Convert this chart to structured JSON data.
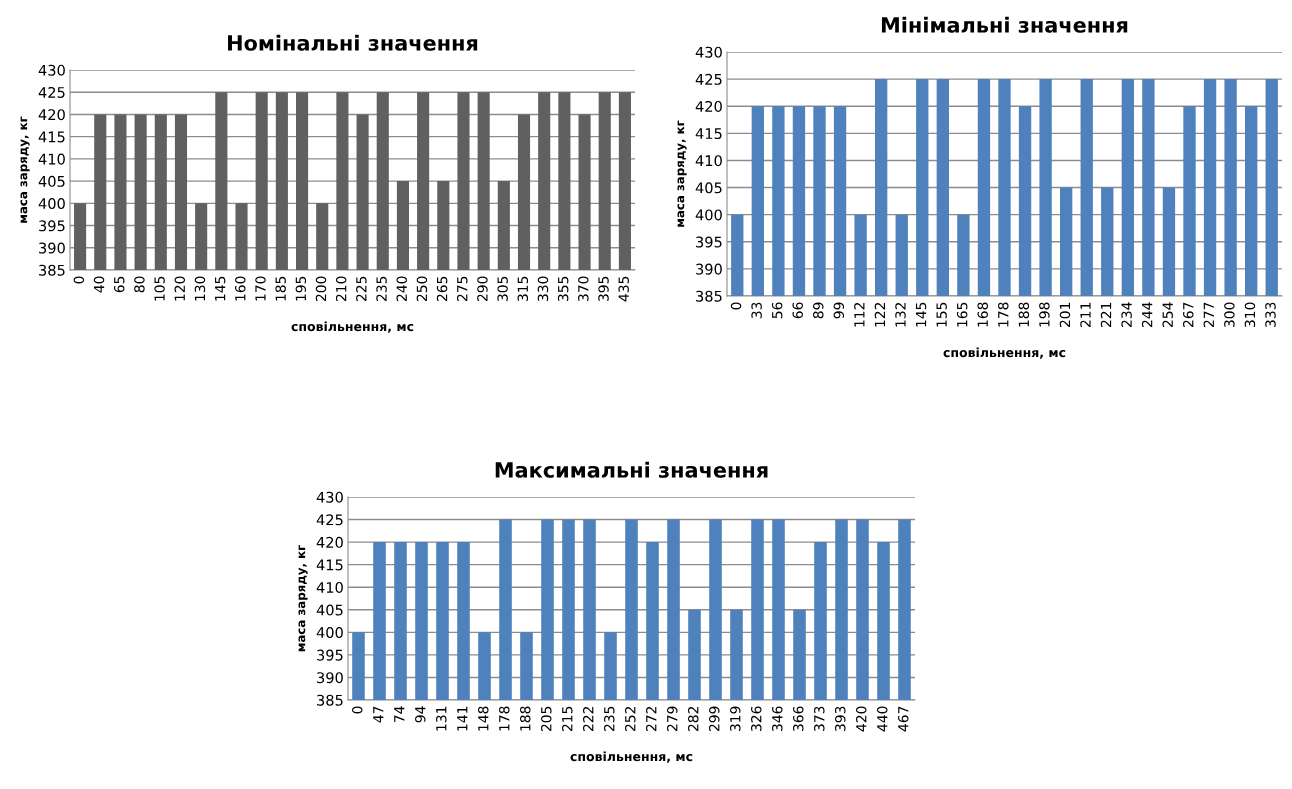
{
  "chart_data": [
    {
      "type": "bar",
      "title": "Номінальні значення",
      "xlabel": "сповільнення, мс",
      "ylabel": "маса заряду, кг",
      "color": "#606060",
      "grid": "y",
      "ylim": [
        385,
        430
      ],
      "yticks": [
        385,
        390,
        395,
        400,
        405,
        410,
        415,
        420,
        425,
        430
      ],
      "categories": [
        "0",
        "40",
        "65",
        "80",
        "105",
        "120",
        "130",
        "145",
        "160",
        "170",
        "185",
        "195",
        "200",
        "210",
        "225",
        "235",
        "240",
        "250",
        "265",
        "275",
        "290",
        "305",
        "315",
        "330",
        "355",
        "370",
        "395",
        "435"
      ],
      "values": [
        400,
        420,
        420,
        420,
        420,
        420,
        400,
        425,
        400,
        425,
        425,
        425,
        400,
        425,
        420,
        425,
        405,
        425,
        405,
        425,
        425,
        405,
        420,
        425,
        425,
        420,
        425,
        425
      ]
    },
    {
      "type": "bar",
      "title": "Мінімальні значення",
      "xlabel": "сповільнення, мс",
      "ylabel": "маса заряду, кг",
      "color": "#4f81bd",
      "grid": "y",
      "ylim": [
        385,
        430
      ],
      "yticks": [
        385,
        390,
        395,
        400,
        405,
        410,
        415,
        420,
        425,
        430
      ],
      "categories": [
        "0",
        "33",
        "56",
        "66",
        "89",
        "99",
        "112",
        "122",
        "132",
        "145",
        "155",
        "165",
        "168",
        "178",
        "188",
        "198",
        "201",
        "211",
        "221",
        "234",
        "244",
        "254",
        "267",
        "277",
        "300",
        "310",
        "333"
      ],
      "values": [
        400,
        420,
        420,
        420,
        420,
        420,
        400,
        425,
        400,
        425,
        425,
        400,
        425,
        425,
        420,
        425,
        405,
        425,
        405,
        425,
        425,
        405,
        420,
        425,
        425,
        420,
        425
      ]
    },
    {
      "type": "bar",
      "title": "Максимальні значення",
      "xlabel": "сповільнення, мс",
      "ylabel": "маса заряду, кг",
      "color": "#4f81bd",
      "grid": "y",
      "ylim": [
        385,
        430
      ],
      "yticks": [
        385,
        390,
        395,
        400,
        405,
        410,
        415,
        420,
        425,
        430
      ],
      "categories": [
        "0",
        "47",
        "74",
        "94",
        "131",
        "141",
        "148",
        "178",
        "188",
        "205",
        "215",
        "222",
        "235",
        "252",
        "272",
        "279",
        "282",
        "299",
        "319",
        "326",
        "346",
        "366",
        "373",
        "393",
        "420",
        "440",
        "467"
      ],
      "values": [
        400,
        420,
        420,
        420,
        420,
        420,
        400,
        425,
        400,
        425,
        425,
        425,
        400,
        425,
        420,
        425,
        405,
        425,
        405,
        425,
        425,
        405,
        420,
        425,
        425,
        420,
        425
      ]
    }
  ]
}
